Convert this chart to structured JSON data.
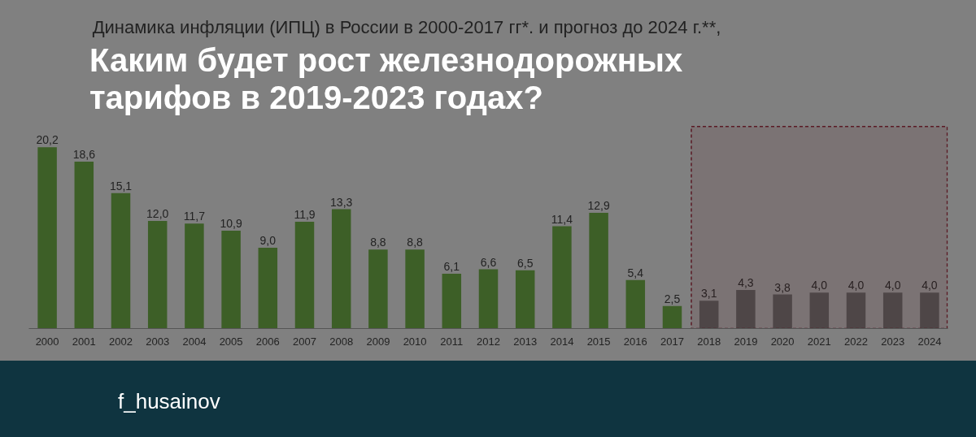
{
  "chart_data": {
    "type": "bar",
    "title": "Каким будет рост железнодорожных тарифов в 2019-2023 годах?",
    "subtitle": "Динамика инфляции (ИПЦ) в России в 2000-2017 гг*. и прогноз до 2024 г.**,",
    "categories": [
      "2000",
      "2001",
      "2002",
      "2003",
      "2004",
      "2005",
      "2006",
      "2007",
      "2008",
      "2009",
      "2010",
      "2011",
      "2012",
      "2013",
      "2014",
      "2015",
      "2016",
      "2017",
      "2018",
      "2019",
      "2020",
      "2021",
      "2022",
      "2023",
      "2024"
    ],
    "values": [
      20.2,
      18.6,
      15.1,
      12.0,
      11.7,
      10.9,
      9.0,
      11.9,
      13.3,
      8.8,
      8.8,
      6.1,
      6.6,
      6.5,
      11.4,
      12.9,
      5.4,
      2.5,
      3.1,
      4.3,
      3.8,
      4.0,
      4.0,
      4.0,
      4.0
    ],
    "value_labels": [
      "20,2",
      "18,6",
      "15,1",
      "12,0",
      "11,7",
      "10,9",
      "9,0",
      "11,9",
      "13,3",
      "8,8",
      "8,8",
      "6,1",
      "6,6",
      "6,5",
      "11,4",
      "12,9",
      "5,4",
      "2,5",
      "3,1",
      "4,3",
      "3,8",
      "4,0",
      "4,0",
      "4,0",
      "4,0"
    ],
    "colors": [
      "#3d5f27",
      "#3d5f27",
      "#3d5f27",
      "#3d5f27",
      "#3d5f27",
      "#3d5f27",
      "#3d5f27",
      "#3d5f27",
      "#3d5f27",
      "#3d5f27",
      "#3d5f27",
      "#3d5f27",
      "#3d5f27",
      "#3d5f27",
      "#3d5f27",
      "#3d5f27",
      "#3d5f27",
      "#3d5f27",
      "#4d4d4d",
      "#4d4d4d",
      "#4d4d4d",
      "#4d4d4d",
      "#4d4d4d",
      "#4d4d4d",
      "#4d4d4d"
    ],
    "bands": [
      {
        "axis": "x",
        "from": "2018",
        "to": "2024",
        "color": "#5a1a24"
      }
    ],
    "annotations": [
      "f_husainov"
    ],
    "grid": false
  }
}
